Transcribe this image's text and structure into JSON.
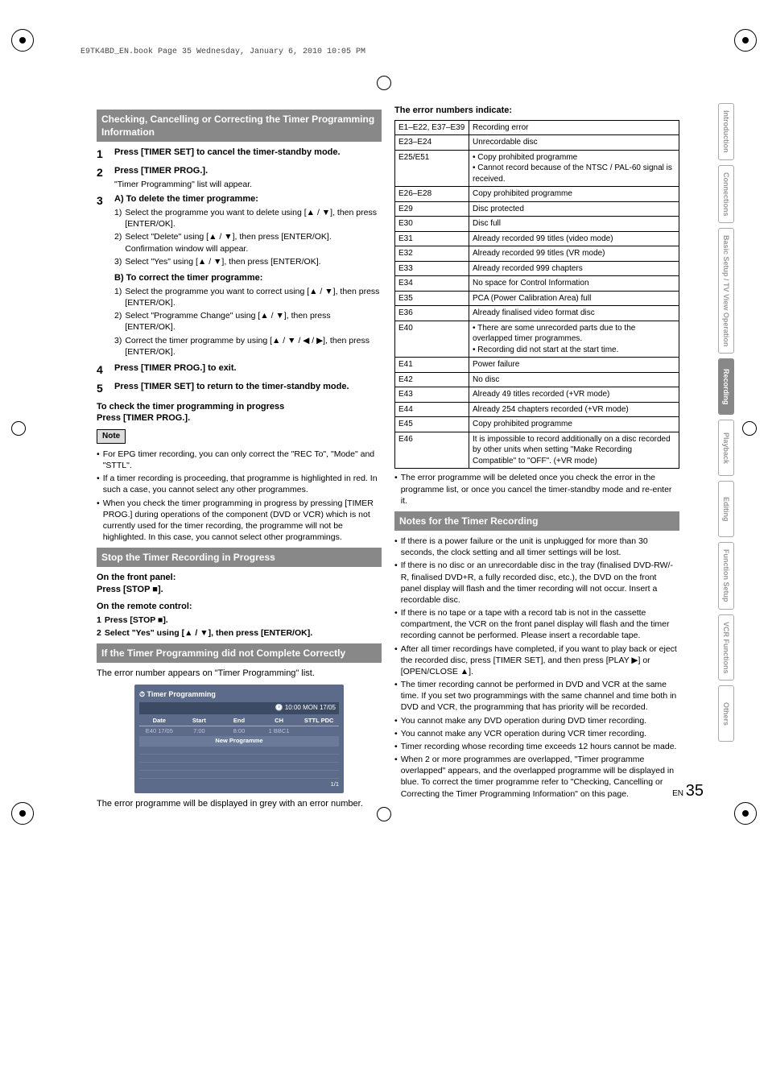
{
  "book_header": "E9TK4BD_EN.book  Page 35  Wednesday, January 6, 2010  10:05 PM",
  "left": {
    "sec1_title": "Checking, Cancelling or Correcting the Timer Programming Information",
    "s1": "Press [TIMER SET] to cancel the timer-standby mode.",
    "s2": "Press [TIMER PROG.].",
    "s2_sub": "\"Timer Programming\" list will appear.",
    "s3a_title": "A) To delete the timer programme:",
    "s3a_1": "Select the programme you want to delete using [▲ / ▼], then press [ENTER/OK].",
    "s3a_2": "Select \"Delete\" using [▲ / ▼], then press [ENTER/OK].",
    "s3a_2b": "Confirmation window will appear.",
    "s3a_3": "Select \"Yes\" using [▲ / ▼], then press [ENTER/OK].",
    "s3b_title": "B) To correct the timer programme:",
    "s3b_1": "Select the programme you want to correct using [▲ / ▼], then press [ENTER/OK].",
    "s3b_2": "Select \"Programme Change\" using [▲ / ▼], then press [ENTER/OK].",
    "s3b_3": "Correct the timer programme by using [▲ / ▼ / ◀ / ▶], then press [ENTER/OK].",
    "s4": "Press [TIMER PROG.] to exit.",
    "s5": "Press [TIMER SET] to return to the timer-standby mode.",
    "check_title": "To check the timer programming in progress",
    "check_body": "Press [TIMER PROG.].",
    "note_label": "Note",
    "notes": [
      "For EPG timer recording, you can only correct the \"REC To\", \"Mode\" and \"STTL\".",
      "If a timer recording is proceeding, that programme is highlighted in red. In such a case, you cannot select any other programmes.",
      "When you check the timer programming in progress by pressing [TIMER PROG.] during operations of the component (DVD or VCR) which is not currently used for the timer recording, the programme will not be highlighted. In this case, you cannot select other programmings."
    ],
    "sec2_title": "Stop the Timer Recording in Progress",
    "front_panel": "On the front panel:",
    "front_panel_b": "Press [STOP ■].",
    "remote": "On the remote control:",
    "remote_1": "Press [STOP ■].",
    "remote_2": "Select \"Yes\" using [▲ / ▼], then press [ENTER/OK].",
    "sec3_title": "If the Timer Programming did not Complete Correctly",
    "sec3_body": "The error number appears on \"Timer Programming\" list.",
    "sec3_foot": "The error programme will be displayed in grey with an error number.",
    "tp": {
      "title": "Timer Programming",
      "time": "10:00 MON 17/05",
      "cols": [
        "Date",
        "Start",
        "End",
        "CH",
        "STTL PDC"
      ],
      "row": [
        "E40  17/05",
        "7:00",
        "8:00",
        "1 BBC1",
        ""
      ],
      "newprog": "New Programme",
      "foot": "1/1"
    }
  },
  "right": {
    "err_intro": "The error numbers indicate:",
    "errors": [
      [
        "E1–E22, E37–E39",
        "Recording error"
      ],
      [
        "E23–E24",
        "Unrecordable disc"
      ],
      [
        "E25/E51",
        "• Copy prohibited programme\n• Cannot record because of the NTSC / PAL-60 signal is received."
      ],
      [
        "E26–E28",
        "Copy prohibited programme"
      ],
      [
        "E29",
        "Disc protected"
      ],
      [
        "E30",
        "Disc full"
      ],
      [
        "E31",
        "Already recorded 99 titles (video mode)"
      ],
      [
        "E32",
        "Already recorded 99 titles (VR mode)"
      ],
      [
        "E33",
        "Already recorded 999 chapters"
      ],
      [
        "E34",
        "No space for Control Information"
      ],
      [
        "E35",
        "PCA (Power Calibration Area) full"
      ],
      [
        "E36",
        "Already finalised video format disc"
      ],
      [
        "E40",
        "• There are some unrecorded parts due to the overlapped timer programmes.\n• Recording did not start at the start time."
      ],
      [
        "E41",
        "Power failure"
      ],
      [
        "E42",
        "No disc"
      ],
      [
        "E43",
        "Already 49 titles recorded (+VR mode)"
      ],
      [
        "E44",
        "Already 254 chapters recorded (+VR mode)"
      ],
      [
        "E45",
        "Copy prohibited programme"
      ],
      [
        "E46",
        "It is impossible to record additionally on a disc recorded by other units when setting \"Make Recording Compatible\" to \"OFF\". (+VR mode)"
      ]
    ],
    "err_foot": "The error programme will be deleted once you check the error in the programme list, or once you cancel the timer-standby mode and re-enter it.",
    "sec_title": "Notes for the Timer Recording",
    "notes": [
      "If there is a power failure or the unit is unplugged for more than 30 seconds, the clock setting and all timer settings will be lost.",
      "If there is no disc or an unrecordable disc in the tray (finalised DVD-RW/-R, finalised DVD+R, a fully recorded disc, etc.), the DVD on the front panel display will flash and the timer recording will not occur. Insert a recordable disc.",
      "If there is no tape or a tape with a record tab is not in the cassette compartment, the VCR on the front panel display will flash and the timer recording cannot be performed. Please insert a recordable tape.",
      "After all timer recordings have completed, if you want to play back or eject the recorded disc, press [TIMER SET], and then press [PLAY ▶] or [OPEN/CLOSE ▲].",
      "The timer recording cannot be performed in DVD and VCR at the same time. If you set two programmings with the same channel and time both in DVD and VCR, the programming that has priority will be recorded.",
      "You cannot make any DVD operation during DVD timer recording.",
      "You cannot make any VCR operation during VCR timer recording.",
      "Timer recording whose recording time exceeds 12 hours cannot be made.",
      "When 2 or more programmes are overlapped, \"Timer programme overlapped\" appears, and the overlapped programme will be displayed in blue. To correct the timer programme refer to \"Checking, Cancelling or Correcting the Timer Programming Information\" on this page."
    ]
  },
  "tabs": [
    "Introduction",
    "Connections",
    "Basic Setup / TV View Operation",
    "Recording",
    "Playback",
    "Editing",
    "Function Setup",
    "VCR Functions",
    "Others"
  ],
  "active_tab_index": 3,
  "page": {
    "en": "EN",
    "num": "35"
  }
}
